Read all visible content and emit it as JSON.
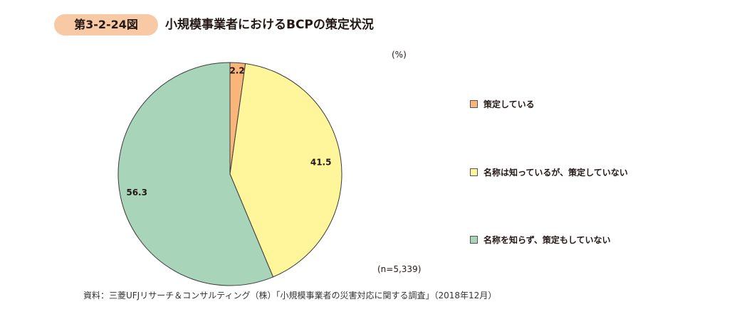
{
  "header": {
    "figure_number": "第3-2-24図",
    "title": "小規模事業者におけるBCPの策定状況"
  },
  "chart_data": {
    "type": "pie",
    "title": "小規模事業者におけるBCPの策定状況",
    "unit": "(%)",
    "categories": [
      "策定している",
      "名称は知っているが、策定していない",
      "名称を知らず、策定もしていない"
    ],
    "values": [
      2.2,
      41.5,
      56.3
    ],
    "labels": [
      "2.2",
      "41.5",
      "56.3"
    ],
    "colors": [
      "#f9b57a",
      "#fff59b",
      "#a8d5b9"
    ],
    "start": "top",
    "direction": "clockwise",
    "legend_position": "right",
    "sample_size": "(n=5,339)"
  },
  "source": "資料：三菱UFJリサーチ＆コンサルティング（株）「小規模事業者の災害対応に関する調査」（2018年12月）"
}
